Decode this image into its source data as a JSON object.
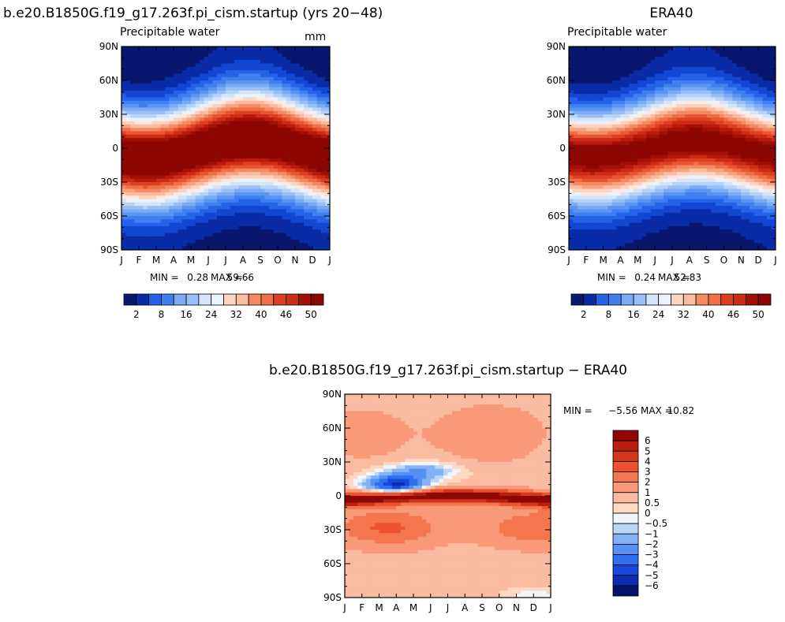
{
  "chart_data": [
    {
      "type": "heatmap",
      "title": "b.e20.B1850G.f19_g17.263f.pi_cism.startup (yrs 20−48)",
      "subtitle": "Precipitable water",
      "units": "mm",
      "x_ticks": [
        "J",
        "F",
        "M",
        "A",
        "M",
        "J",
        "J",
        "A",
        "S",
        "O",
        "N",
        "D",
        "J"
      ],
      "y_ticks": [
        "90N",
        "60N",
        "30N",
        "0",
        "30S",
        "60S",
        "90S"
      ],
      "min_label": "MIN =",
      "min_value": "0.28",
      "max_label": "MAX =",
      "max_value": "59.66",
      "itcz": {
        "amplitude_deg": 8,
        "peak_month": 7.5,
        "peak_value": 56,
        "width_deg": 28
      },
      "colorbar": {
        "orientation": "horizontal",
        "levels": [
          2,
          4,
          6,
          8,
          10,
          12,
          14,
          16,
          18,
          20,
          22,
          24,
          26,
          28,
          30,
          32,
          34,
          36,
          38,
          40,
          42,
          44,
          46,
          48,
          50
        ],
        "labels": [
          "2",
          "8",
          "16",
          "24",
          "32",
          "40",
          "46",
          "50"
        ]
      }
    },
    {
      "type": "heatmap",
      "title": "ERA40",
      "subtitle": "Precipitable water",
      "units": "",
      "x_ticks": [
        "J",
        "F",
        "M",
        "A",
        "M",
        "J",
        "J",
        "A",
        "S",
        "O",
        "N",
        "D",
        "J"
      ],
      "y_ticks": [
        "90N",
        "60N",
        "30N",
        "0",
        "30S",
        "60S",
        "90S"
      ],
      "min_label": "MIN =",
      "min_value": "0.24",
      "max_label": "MAX =",
      "max_value": "52.83",
      "itcz": {
        "amplitude_deg": 7,
        "peak_month": 7.5,
        "peak_value": 50,
        "width_deg": 27
      },
      "colorbar": {
        "orientation": "horizontal",
        "levels": [
          2,
          4,
          6,
          8,
          10,
          12,
          14,
          16,
          18,
          20,
          22,
          24,
          26,
          28,
          30,
          32,
          34,
          36,
          38,
          40,
          42,
          44,
          46,
          48,
          50
        ],
        "labels": [
          "2",
          "8",
          "16",
          "24",
          "32",
          "40",
          "46",
          "50"
        ]
      }
    },
    {
      "type": "heatmap",
      "title": "b.e20.B1850G.f19_g17.263f.pi_cism.startup − ERA40",
      "x_ticks": [
        "J",
        "F",
        "M",
        "A",
        "M",
        "J",
        "J",
        "A",
        "S",
        "O",
        "N",
        "D",
        "J"
      ],
      "y_ticks": [
        "90N",
        "60N",
        "30N",
        "0",
        "30S",
        "60S",
        "90S"
      ],
      "min_label": "MIN =",
      "min_value": "−5.56",
      "max_label": "MAX =",
      "max_value": "10.82",
      "colorbar": {
        "orientation": "vertical",
        "levels": [
          -6,
          -5,
          -4,
          -3,
          -2,
          -1,
          -0.5,
          0,
          0.5,
          1,
          2,
          3,
          4,
          5,
          6
        ],
        "labels": [
          "6",
          "5",
          "4",
          "3",
          "2",
          "1",
          "0.5",
          "0",
          "−0.5",
          "−1",
          "−2",
          "−3",
          "−4",
          "−5",
          "−6"
        ]
      }
    }
  ],
  "palettes": {
    "precip": [
      "#08166e",
      "#0a2ba6",
      "#1247d2",
      "#2562e8",
      "#3f7ff0",
      "#5a95f2",
      "#7aabf4",
      "#98c0f7",
      "#b6d3f8",
      "#d4e4fa",
      "#ecf2fb",
      "#fde9dd",
      "#fbd3bf",
      "#f9bc9f",
      "#f7a37f",
      "#f48a62",
      "#ef6f47",
      "#e95432",
      "#de3f22",
      "#cc2b14",
      "#b81b0b",
      "#a20f05",
      "#8c0602"
    ],
    "diff": [
      "#03126f",
      "#0a2cb0",
      "#1648de",
      "#2f6ff0",
      "#5590f4",
      "#85b1f6",
      "#bcd6f8",
      "#f2f6fb",
      "#fdd9c4",
      "#fbbba0",
      "#f89a78",
      "#f4764f",
      "#ec5330",
      "#d5361c",
      "#b81f0e",
      "#8e0703"
    ]
  }
}
